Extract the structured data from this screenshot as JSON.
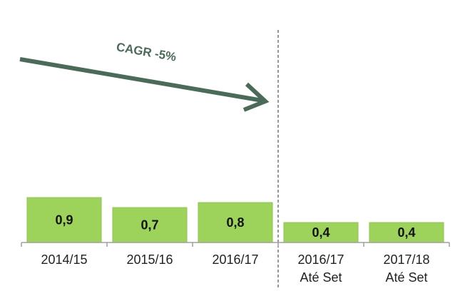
{
  "chart_data": {
    "type": "bar",
    "annotations": [
      "CAGR -5%"
    ],
    "categories": [
      "2014/15",
      "2015/16",
      "2016/17",
      "2016/17\nAté Set",
      "2017/18\nAté Set"
    ],
    "values": [
      0.9,
      0.7,
      0.8,
      0.4,
      0.4
    ],
    "value_labels": [
      "0,9",
      "0,7",
      "0,8",
      "0,4",
      "0,4"
    ],
    "color": "#9dd35b",
    "ylim": [
      0,
      4.8
    ]
  }
}
